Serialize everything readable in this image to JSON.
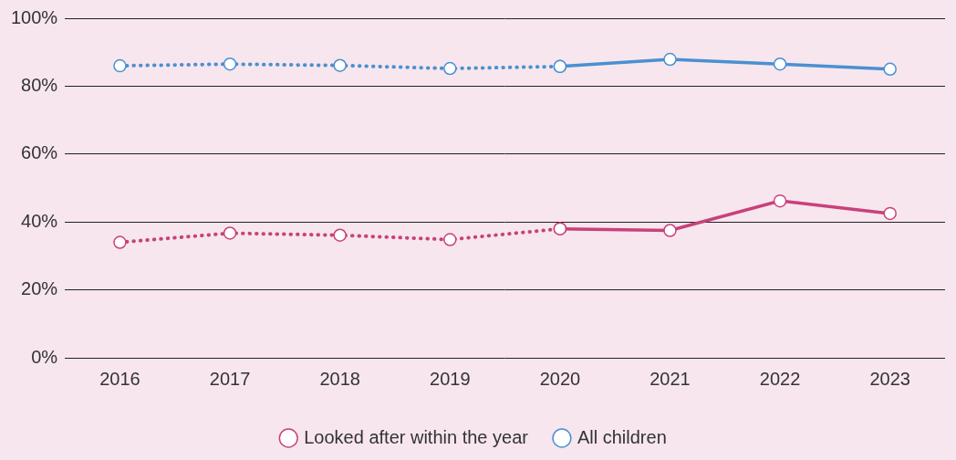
{
  "chart_data": {
    "type": "line",
    "categories": [
      "2016",
      "2017",
      "2018",
      "2019",
      "2020",
      "2021",
      "2022",
      "2023"
    ],
    "series": [
      {
        "name": "Looked after within the year",
        "color": "#c9417a",
        "line_style": "dotted",
        "marker": "circle",
        "values": [
          34.0,
          36.7,
          36.1,
          34.8,
          38.0,
          null,
          null,
          null
        ]
      },
      {
        "name": "Looked after within the year",
        "color": "#c9417a",
        "line_style": "solid",
        "marker": "circle",
        "values": [
          null,
          null,
          null,
          null,
          38.0,
          37.5,
          46.2,
          42.5
        ]
      },
      {
        "name": "All children",
        "color": "#4a90d0",
        "line_style": "dotted",
        "marker": "circle",
        "values": [
          86.0,
          86.5,
          86.1,
          85.2,
          85.8,
          null,
          null,
          null
        ]
      },
      {
        "name": "All children",
        "color": "#4a90d0",
        "line_style": "solid",
        "marker": "circle",
        "values": [
          null,
          null,
          null,
          null,
          85.8,
          87.9,
          86.5,
          85.0
        ]
      }
    ],
    "ylim": [
      0,
      100
    ],
    "yticks": [
      {
        "value": 0,
        "label": "0%"
      },
      {
        "value": 20,
        "label": "20%"
      },
      {
        "value": 40,
        "label": "40%"
      },
      {
        "value": 60,
        "label": "60%"
      },
      {
        "value": 80,
        "label": "80%"
      },
      {
        "value": 100,
        "label": "100%"
      }
    ],
    "grid": true,
    "legend": "bottom"
  }
}
